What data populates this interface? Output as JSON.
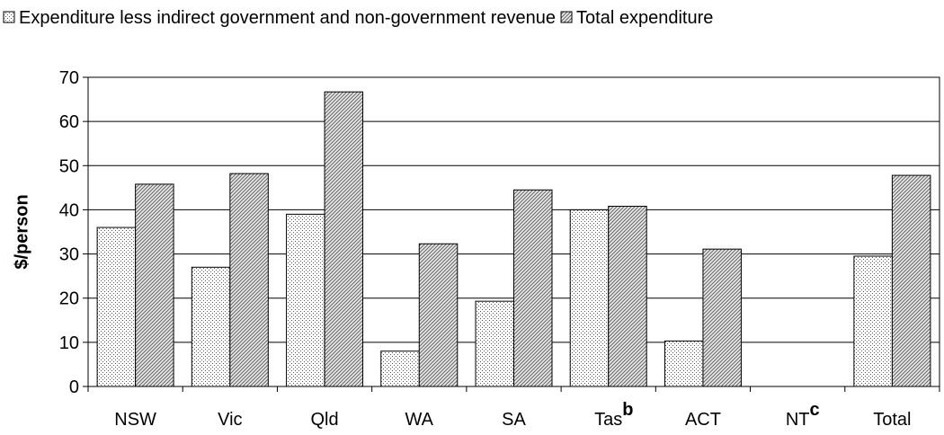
{
  "chart_data": {
    "type": "bar",
    "categories": [
      "NSW",
      "Vic",
      "Qld",
      "WA",
      "SA",
      "Tas",
      "ACT",
      "NT",
      "Total"
    ],
    "category_notes": [
      null,
      null,
      null,
      null,
      null,
      "b",
      null,
      "c",
      null
    ],
    "series": [
      {
        "name": "Expenditure less indirect government and non-government revenue",
        "values": [
          36,
          27,
          39,
          8,
          19.3,
          40,
          10.3,
          null,
          29.5
        ]
      },
      {
        "name": "Total expenditure",
        "values": [
          45.8,
          48.2,
          66.7,
          32.3,
          44.5,
          40.8,
          31.1,
          null,
          47.8
        ]
      }
    ],
    "y_label": "$/person",
    "ylim": [
      0,
      70
    ],
    "yticks": [
      0,
      10,
      20,
      30,
      40,
      50,
      60,
      70
    ],
    "grid": true,
    "legend": "top"
  }
}
